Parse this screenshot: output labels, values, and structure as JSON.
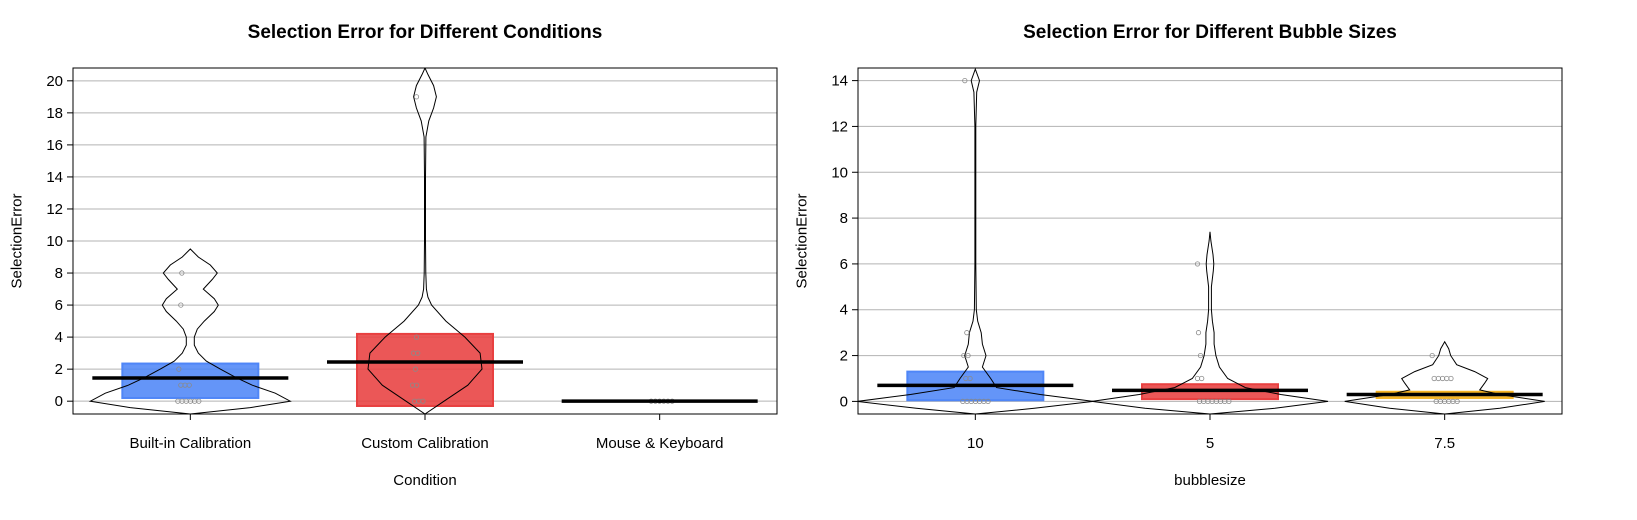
{
  "chart_data": [
    {
      "type": "violin",
      "title": "Selection Error for Different Conditions",
      "xlabel": "Condition",
      "ylabel": "SelectionError",
      "ylim": [
        -0.8,
        20.8
      ],
      "yticks": [
        0,
        2,
        4,
        6,
        8,
        10,
        12,
        14,
        16,
        18,
        20
      ],
      "grid": "horizontal",
      "categories": [
        "Built-in Calibration",
        "Custom Calibration",
        "Mouse & Keyboard"
      ],
      "series": [
        {
          "color": "#4F86F7",
          "mean": 1.45,
          "ci": [
            0.2,
            2.35
          ],
          "points": [
            0,
            0,
            0,
            0,
            0,
            0,
            1,
            1,
            1,
            2,
            6,
            8
          ],
          "density": [
            [
              -0.8,
              0.0
            ],
            [
              -0.4,
              0.6
            ],
            [
              0,
              1.0
            ],
            [
              0.5,
              0.85
            ],
            [
              1,
              0.62
            ],
            [
              1.5,
              0.45
            ],
            [
              2,
              0.3
            ],
            [
              2.5,
              0.16
            ],
            [
              3,
              0.08
            ],
            [
              3.5,
              0.04
            ],
            [
              4,
              0.04
            ],
            [
              4.5,
              0.07
            ],
            [
              5,
              0.14
            ],
            [
              5.6,
              0.24
            ],
            [
              6,
              0.28
            ],
            [
              6.4,
              0.24
            ],
            [
              7,
              0.13
            ],
            [
              7.6,
              0.22
            ],
            [
              8,
              0.27
            ],
            [
              8.5,
              0.2
            ],
            [
              9,
              0.08
            ],
            [
              9.5,
              0.0
            ]
          ]
        },
        {
          "color": "#E84040",
          "mean": 2.45,
          "ci": [
            -0.3,
            4.2
          ],
          "points": [
            0,
            0,
            0,
            1,
            1,
            2,
            3,
            3,
            4,
            19
          ],
          "density": [
            [
              -0.8,
              0.0
            ],
            [
              0,
              0.2
            ],
            [
              1,
              0.45
            ],
            [
              2,
              0.6
            ],
            [
              3,
              0.58
            ],
            [
              4,
              0.42
            ],
            [
              5,
              0.22
            ],
            [
              6,
              0.07
            ],
            [
              6.5,
              0.03
            ],
            [
              7,
              0.015
            ],
            [
              8,
              0.008
            ],
            [
              10,
              0.005
            ],
            [
              14,
              0.005
            ],
            [
              16.5,
              0.01
            ],
            [
              17.5,
              0.04
            ],
            [
              18.3,
              0.09
            ],
            [
              19,
              0.12
            ],
            [
              19.7,
              0.09
            ],
            [
              20.4,
              0.03
            ],
            [
              20.8,
              0.0
            ]
          ]
        },
        {
          "color": "#FFD35B",
          "mean": 0.0,
          "ci": [
            0.0,
            0.0
          ],
          "points": [
            0,
            0,
            0,
            0,
            0,
            0
          ],
          "density": [
            [
              -0.08,
              0.0
            ],
            [
              0,
              0.06
            ],
            [
              0.08,
              0.0
            ]
          ]
        }
      ]
    },
    {
      "type": "violin",
      "title": "Selection Error for Different Bubble Sizes",
      "xlabel": "bubblesize",
      "ylabel": "SelectionError",
      "ylim": [
        -0.55,
        14.55
      ],
      "yticks": [
        0,
        2,
        4,
        6,
        8,
        10,
        12,
        14
      ],
      "grid": "horizontal",
      "categories": [
        "10",
        "5",
        "7.5"
      ],
      "series": [
        {
          "color": "#4F86F7",
          "mean": 0.7,
          "ci": [
            0.05,
            1.3
          ],
          "points": [
            0,
            0,
            0,
            0,
            0,
            0,
            0,
            1,
            1,
            2,
            2,
            3,
            14
          ],
          "density": [
            [
              -0.55,
              0.0
            ],
            [
              -0.3,
              0.5
            ],
            [
              0,
              1.0
            ],
            [
              0.3,
              0.55
            ],
            [
              0.6,
              0.18
            ],
            [
              1,
              0.13
            ],
            [
              1.5,
              0.06
            ],
            [
              2,
              0.09
            ],
            [
              2.5,
              0.06
            ],
            [
              3,
              0.05
            ],
            [
              3.5,
              0.02
            ],
            [
              4,
              0.008
            ],
            [
              6,
              0.004
            ],
            [
              10,
              0.004
            ],
            [
              12,
              0.004
            ],
            [
              13.5,
              0.012
            ],
            [
              14,
              0.035
            ],
            [
              14.5,
              0.0
            ]
          ]
        },
        {
          "color": "#E84040",
          "mean": 0.48,
          "ci": [
            0.1,
            0.75
          ],
          "points": [
            0,
            0,
            0,
            0,
            0,
            0,
            0,
            0,
            1,
            1,
            2,
            3,
            6
          ],
          "density": [
            [
              -0.55,
              0.0
            ],
            [
              -0.3,
              0.55
            ],
            [
              0,
              1.0
            ],
            [
              0.3,
              0.6
            ],
            [
              0.6,
              0.3
            ],
            [
              1,
              0.15
            ],
            [
              1.5,
              0.08
            ],
            [
              2,
              0.05
            ],
            [
              2.5,
              0.035
            ],
            [
              3,
              0.035
            ],
            [
              3.5,
              0.02
            ],
            [
              4,
              0.012
            ],
            [
              5,
              0.012
            ],
            [
              5.7,
              0.028
            ],
            [
              6,
              0.032
            ],
            [
              6.4,
              0.025
            ],
            [
              7,
              0.008
            ],
            [
              7.4,
              0.0
            ]
          ]
        },
        {
          "color": "#F5B324",
          "mean": 0.3,
          "ci": [
            0.15,
            0.42
          ],
          "points": [
            0,
            0,
            0,
            0,
            0,
            0,
            1,
            1,
            1,
            1,
            1,
            2
          ],
          "density": [
            [
              -0.55,
              0.0
            ],
            [
              -0.3,
              0.55
            ],
            [
              0,
              1.0
            ],
            [
              0.3,
              0.55
            ],
            [
              0.5,
              0.35
            ],
            [
              0.8,
              0.4
            ],
            [
              1,
              0.43
            ],
            [
              1.3,
              0.3
            ],
            [
              1.6,
              0.12
            ],
            [
              2,
              0.06
            ],
            [
              2.3,
              0.04
            ],
            [
              2.6,
              0.0
            ]
          ]
        }
      ]
    }
  ]
}
